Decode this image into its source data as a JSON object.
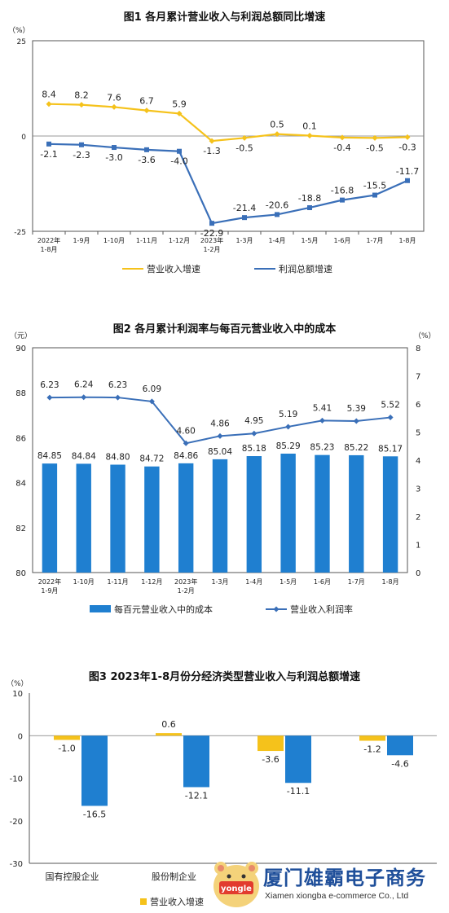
{
  "chart_data": [
    {
      "type": "line",
      "title": "图1  各月累计营业收入与利润总额同比增速",
      "y_unit": "（%）",
      "ylim": [
        -25,
        25
      ],
      "yticks": [
        "25",
        "0",
        "-25"
      ],
      "categories": [
        "2022年\n1-8月",
        "1-9月",
        "1-10月",
        "1-11月",
        "1-12月",
        "2023年\n1-2月",
        "1-3月",
        "1-4月",
        "1-5月",
        "1-6月",
        "1-7月",
        "1-8月"
      ],
      "series": [
        {
          "name": "营业收入增速",
          "color": "#f5c21b",
          "values": [
            8.4,
            8.2,
            7.6,
            6.7,
            5.9,
            -1.3,
            -0.5,
            0.5,
            0.1,
            -0.4,
            -0.5,
            -0.3
          ],
          "labels": [
            "8.4",
            "8.2",
            "7.6",
            "6.7",
            "5.9",
            "-1.3",
            "-0.5",
            "0.5",
            "0.1",
            "-0.4",
            "-0.5",
            "-0.3"
          ]
        },
        {
          "name": "利润总额增速",
          "color": "#3a6fb8",
          "values": [
            -2.1,
            -2.3,
            -3.0,
            -3.6,
            -4.0,
            -22.9,
            -21.4,
            -20.6,
            -18.8,
            -16.8,
            -15.5,
            -11.7
          ],
          "labels": [
            "-2.1",
            "-2.3",
            "-3.0",
            "-3.6",
            "-4.0",
            "-22.9",
            "-21.4",
            "-20.6",
            "-18.8",
            "-16.8",
            "-15.5",
            "-11.7"
          ]
        }
      ],
      "legend_position": "bottom"
    },
    {
      "type": "bar+line",
      "title": "图2  各月累计利润率与每百元营业收入中的成本",
      "y_unit_left": "（元）",
      "y_unit_right": "（%）",
      "ylim_left": [
        80,
        90
      ],
      "ylim_right": [
        0,
        8
      ],
      "yticks_left": [
        "90",
        "88",
        "86",
        "84",
        "82",
        "80"
      ],
      "yticks_right": [
        "8",
        "7",
        "6",
        "5",
        "4",
        "3",
        "2",
        "1",
        "0"
      ],
      "categories": [
        "2022年\n1-9月",
        "1-10月",
        "1-11月",
        "1-12月",
        "2023年\n1-2月",
        "1-3月",
        "1-4月",
        "1-5月",
        "1-6月",
        "1-7月",
        "1-8月"
      ],
      "series": [
        {
          "name": "每百元营业收入中的成本",
          "axis": "left",
          "kind": "bar",
          "color": "#1f7fd0",
          "values": [
            84.85,
            84.84,
            84.8,
            84.72,
            84.86,
            85.04,
            85.18,
            85.29,
            85.23,
            85.22,
            85.17
          ],
          "labels": [
            "84.85",
            "84.84",
            "84.80",
            "84.72",
            "84.86",
            "85.04",
            "85.18",
            "85.29",
            "85.23",
            "85.22",
            "85.17"
          ]
        },
        {
          "name": "营业收入利润率",
          "axis": "right",
          "kind": "line",
          "color": "#3a6fb8",
          "values": [
            6.23,
            6.24,
            6.23,
            6.09,
            4.6,
            4.86,
            4.95,
            5.19,
            5.41,
            5.39,
            5.52
          ],
          "labels": [
            "6.23",
            "6.24",
            "6.23",
            "6.09",
            "4.60",
            "4.86",
            "4.95",
            "5.19",
            "5.41",
            "5.39",
            "5.52"
          ]
        }
      ],
      "legend_position": "bottom"
    },
    {
      "type": "bar",
      "title": "图3  2023年1-8月份分经济类型营业收入与利润总额增速",
      "y_unit": "（%）",
      "ylim": [
        -30,
        10
      ],
      "yticks": [
        "10",
        "0",
        "-10",
        "-20",
        "-30"
      ],
      "categories": [
        "国有控股企业",
        "股份制企业",
        "",
        ""
      ],
      "series": [
        {
          "name": "营业收入增速",
          "color": "#f5c21b",
          "values": [
            -1.0,
            0.6,
            -3.6,
            -1.2
          ],
          "labels": [
            "-1.0",
            "0.6",
            "-3.6",
            "-1.2"
          ]
        },
        {
          "name": "",
          "color": "#1f7fd0",
          "values": [
            -16.5,
            -12.1,
            -11.1,
            -4.6
          ],
          "labels": [
            "-16.5",
            "-12.1",
            "-11.1",
            "-4.6"
          ]
        }
      ],
      "legend_position": "bottom"
    }
  ],
  "watermark": {
    "name": "厦门雄霸电子商务",
    "sub": "Xiamen xiongba e-commerce Co., Ltd",
    "badge": "yongle"
  }
}
